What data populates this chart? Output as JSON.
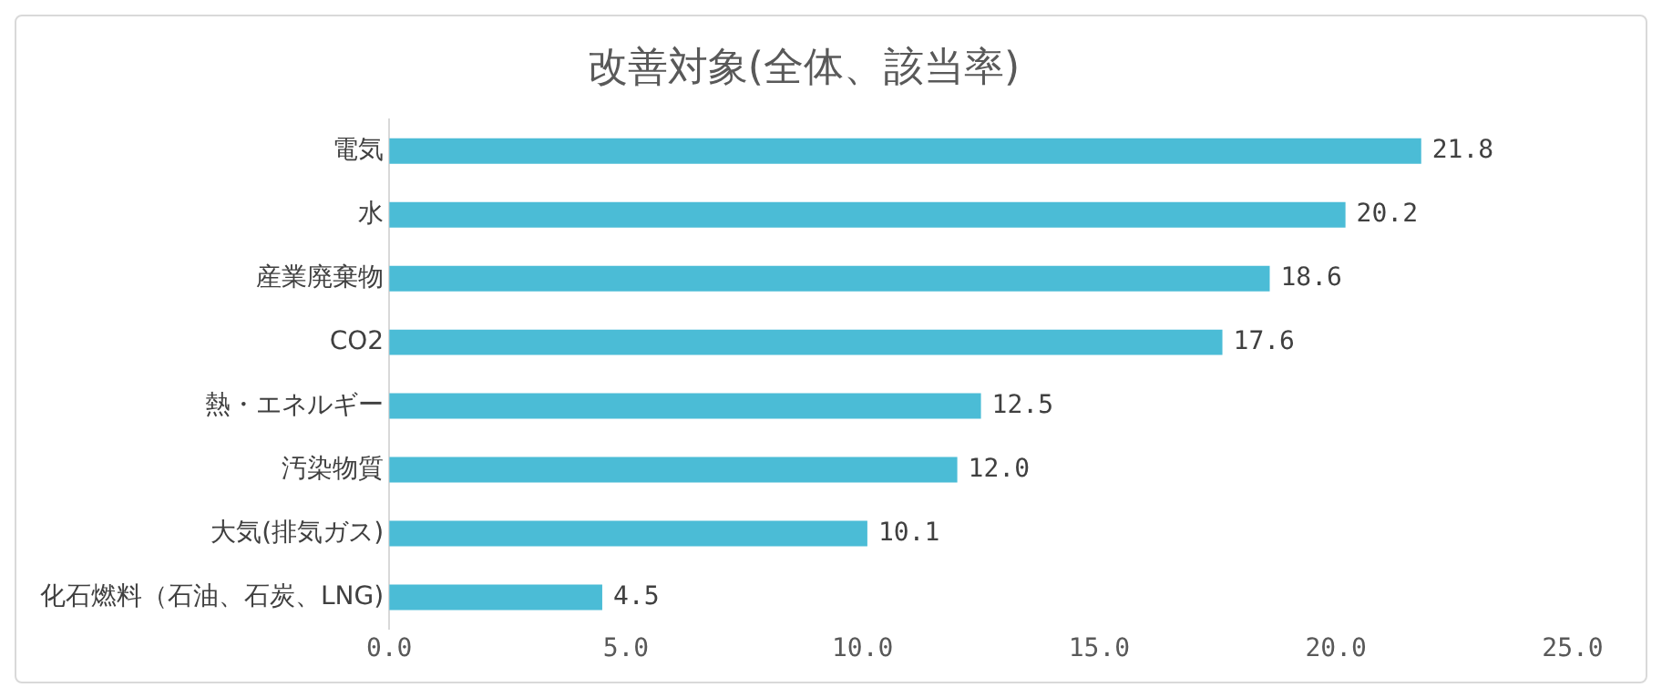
{
  "chart_data": {
    "type": "bar",
    "orientation": "horizontal",
    "title": "改善対象(全体、該当率)",
    "categories": [
      "電気",
      "水",
      "産業廃棄物",
      "CO2",
      "熱・エネルギー",
      "汚染物質",
      "大気(排気ガス)",
      "化石燃料（石油、石炭、LNG)"
    ],
    "values": [
      21.8,
      20.2,
      18.6,
      17.6,
      12.5,
      12.0,
      10.1,
      4.5
    ],
    "value_labels": [
      "21.8",
      "20.2",
      "18.6",
      "17.6",
      "12.5",
      "12.0",
      "10.1",
      "4.5"
    ],
    "color": "#4bbcd6",
    "xlim": [
      0,
      25
    ],
    "xticks": [
      {
        "value": 0,
        "label": "0.0"
      },
      {
        "value": 5,
        "label": "5.0"
      },
      {
        "value": 10,
        "label": "10.0"
      },
      {
        "value": 15,
        "label": "15.0"
      },
      {
        "value": 20,
        "label": "20.0"
      },
      {
        "value": 25,
        "label": "25.0"
      }
    ],
    "grid": false,
    "legend": false
  }
}
